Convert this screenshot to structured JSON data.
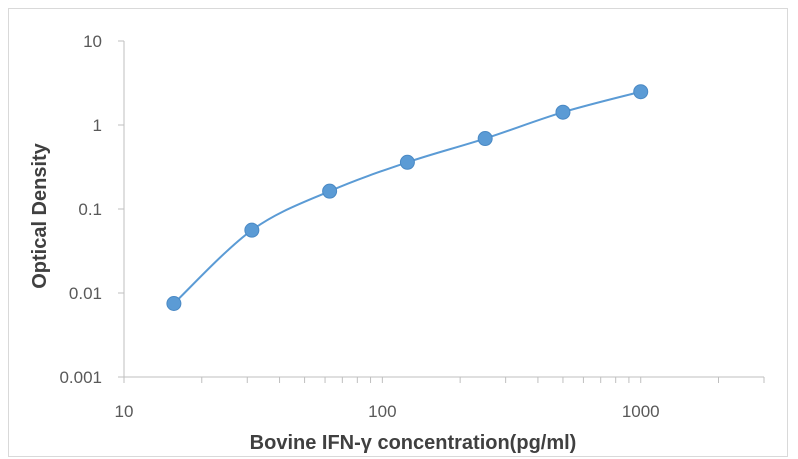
{
  "chart_data": {
    "type": "scatter",
    "title": "",
    "xlabel": "Bovine IFN-γ concentration(pg/ml)",
    "ylabel": "Optical Density",
    "x_scale": "log",
    "y_scale": "log",
    "xlim": [
      10,
      3000
    ],
    "ylim": [
      0.001,
      10
    ],
    "x_ticks": [
      "10",
      "100",
      "1000"
    ],
    "y_ticks": [
      "10",
      "1",
      "0.1",
      "0.01",
      "0.001"
    ],
    "grid": false,
    "series": [
      {
        "x": [
          15.6,
          31.25,
          62.5,
          125,
          250,
          500,
          1000
        ],
        "y": [
          0.0075,
          0.056,
          0.163,
          0.36,
          0.69,
          1.42,
          2.49
        ],
        "marker": "circle",
        "smooth_line": true,
        "color": "#5b9bd5"
      }
    ]
  }
}
